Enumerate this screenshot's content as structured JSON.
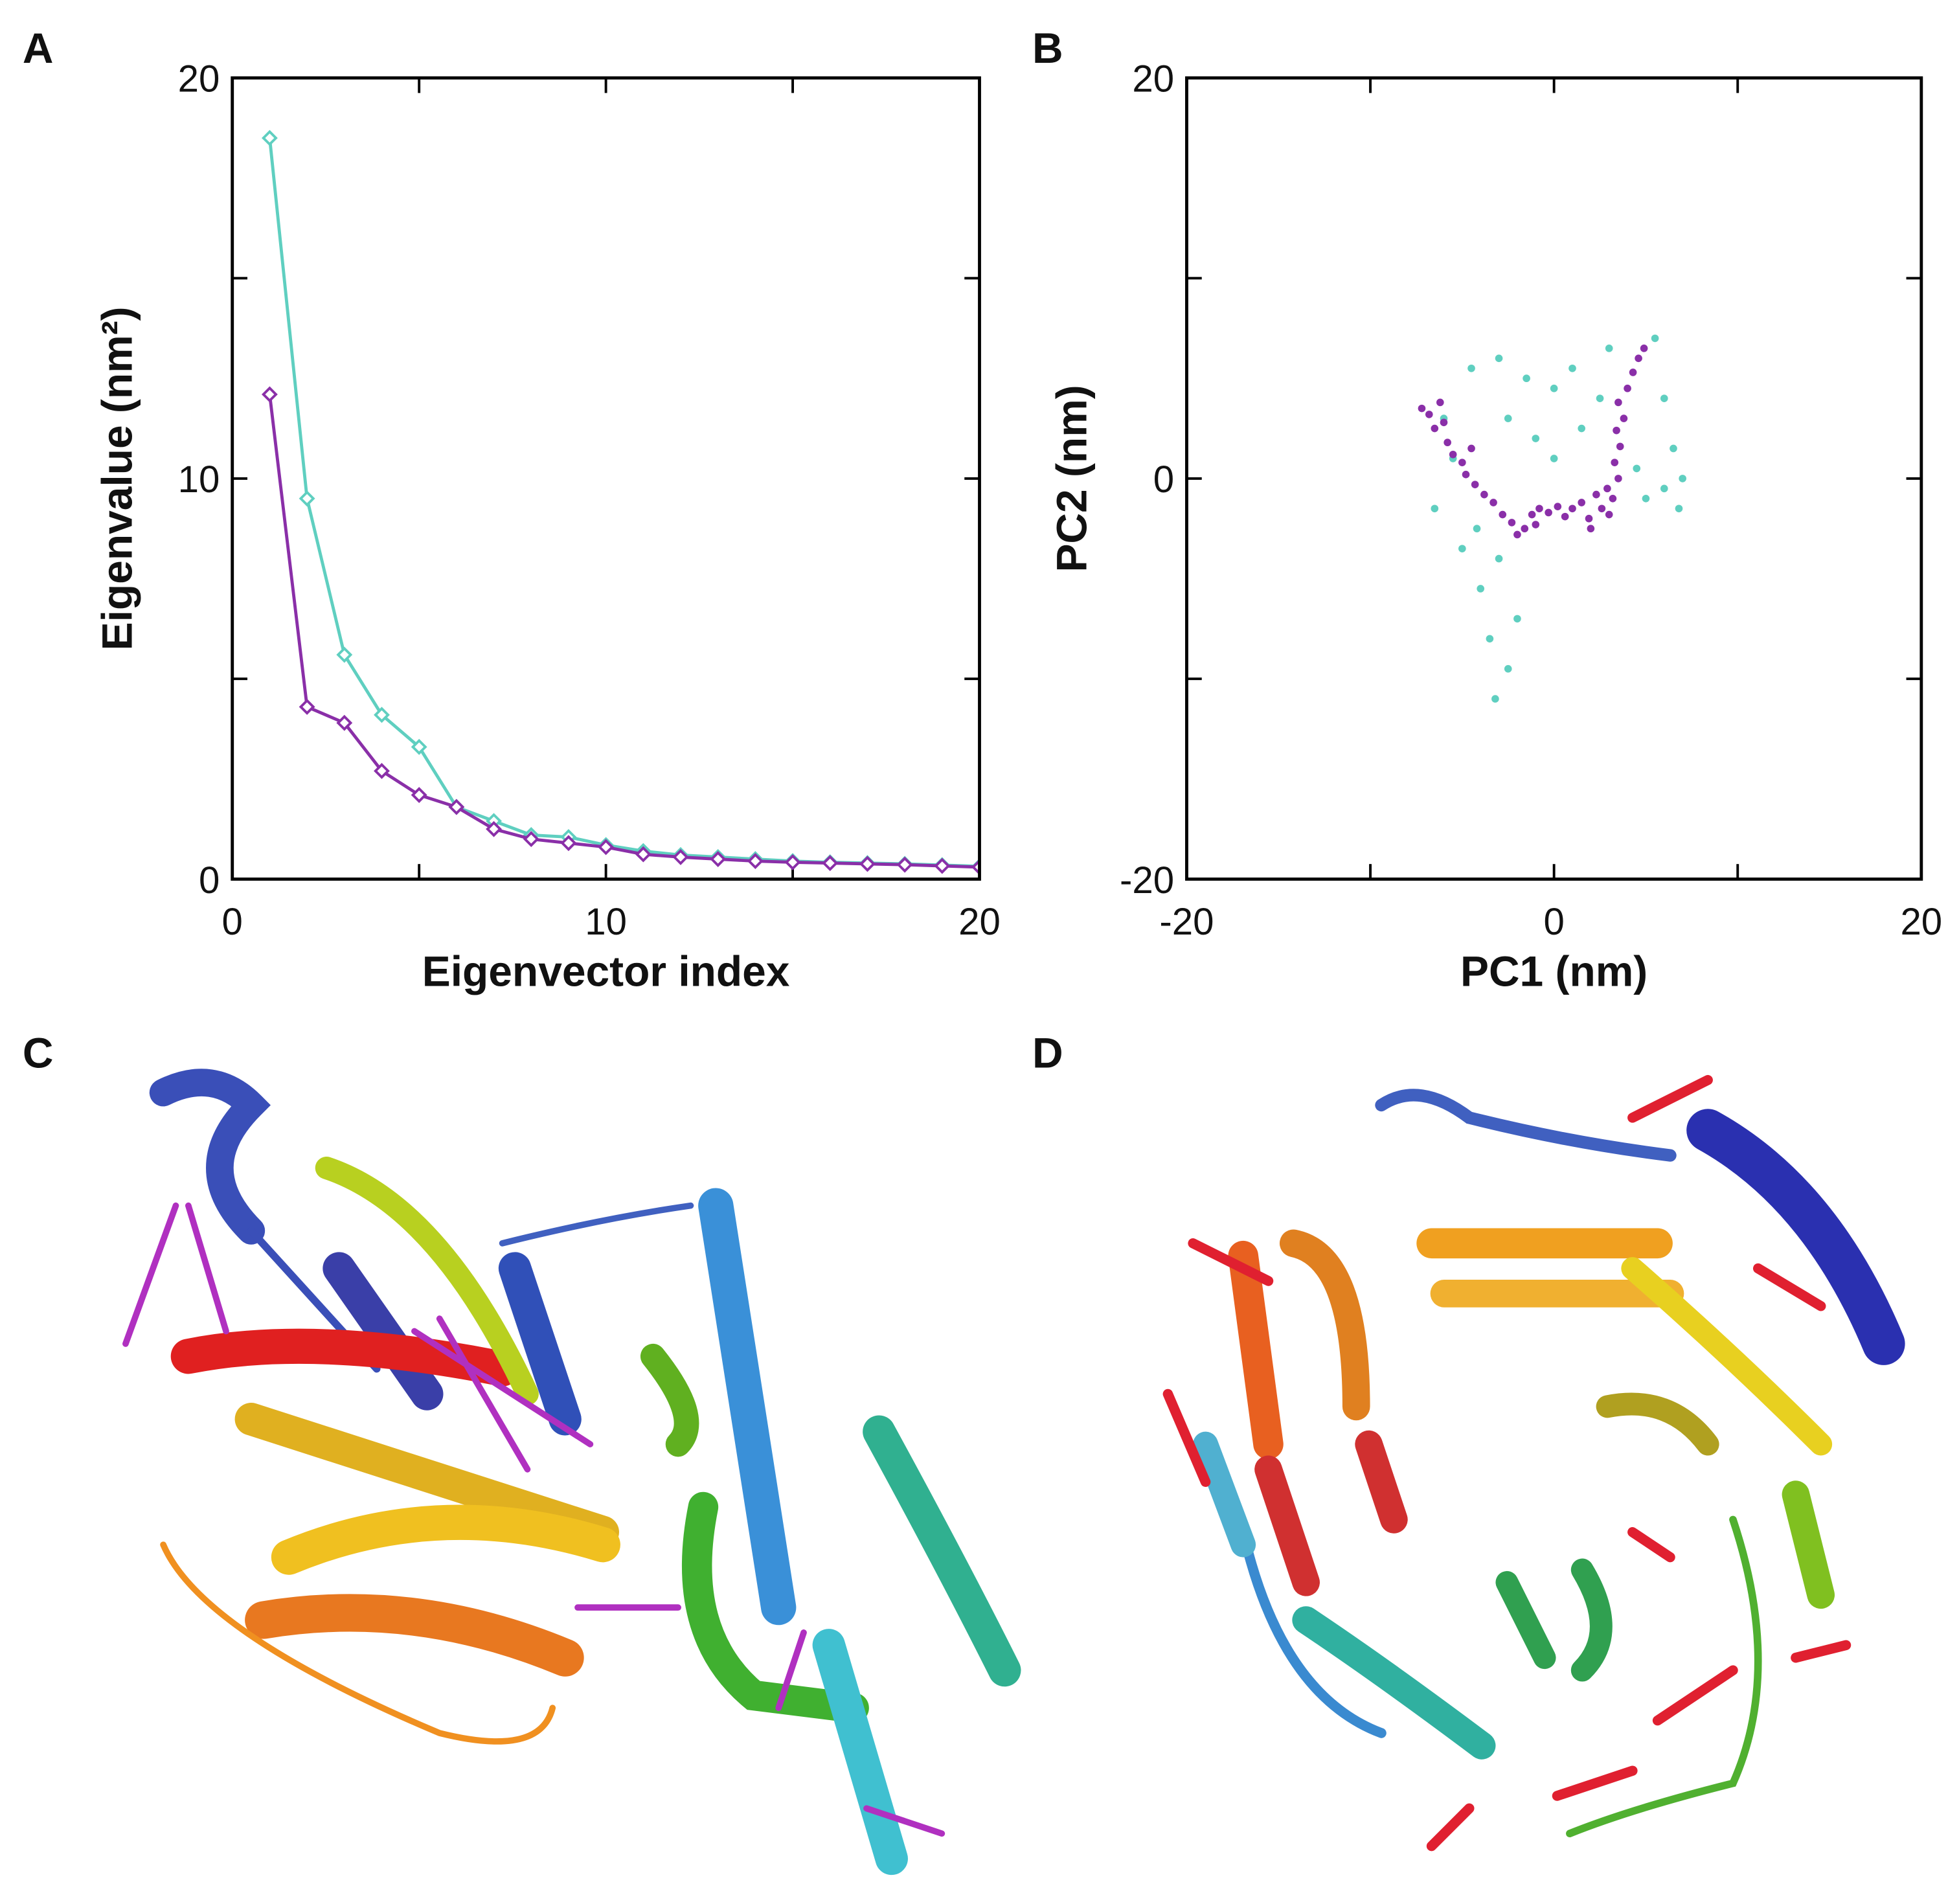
{
  "panel_labels": [
    "A",
    "B",
    "C",
    "D"
  ],
  "chart_data": [
    {
      "type": "line",
      "xlabel": "Eigenvector index",
      "ylabel": "Eigenvalue (nm²)",
      "xlim": [
        0,
        20
      ],
      "ylim": [
        0,
        20
      ],
      "xticks": [
        0,
        10,
        20
      ],
      "yticks": [
        0,
        10,
        20
      ],
      "xminor_ticks": [
        5,
        15
      ],
      "yminor_ticks": [
        5,
        15
      ],
      "x": [
        1,
        2,
        3,
        4,
        5,
        6,
        7,
        8,
        9,
        10,
        11,
        12,
        13,
        14,
        15,
        16,
        17,
        18,
        19,
        20
      ],
      "series": [
        {
          "color": "#5fcfc0",
          "values": [
            18.5,
            9.5,
            5.6,
            4.1,
            3.3,
            1.8,
            1.45,
            1.1,
            1.05,
            0.85,
            0.7,
            0.6,
            0.55,
            0.5,
            0.45,
            0.42,
            0.4,
            0.38,
            0.35,
            0.32
          ]
        },
        {
          "color": "#8a2fa8",
          "values": [
            12.1,
            4.3,
            3.9,
            2.7,
            2.1,
            1.8,
            1.25,
            1.0,
            0.9,
            0.8,
            0.62,
            0.55,
            0.5,
            0.45,
            0.42,
            0.4,
            0.38,
            0.36,
            0.33,
            0.3
          ]
        }
      ]
    },
    {
      "type": "scatter",
      "xlabel": "PC1 (nm)",
      "ylabel": "PC2 (nm)",
      "xlim": [
        -20,
        20
      ],
      "ylim": [
        -20,
        20
      ],
      "xticks": [
        -20,
        0,
        20
      ],
      "yticks": [
        -20,
        0,
        20
      ],
      "xminor_ticks": [
        -10,
        10
      ],
      "yminor_ticks": [
        -10,
        10
      ],
      "series": [
        {
          "color": "#5fcfc0",
          "x": [
            -3.2,
            -2.5,
            -3.5,
            -2,
            -4,
            -3,
            -5,
            -4.2,
            -6.5,
            -5.5,
            -6,
            -4.5,
            -3,
            -1.5,
            0,
            1,
            2.5,
            3,
            5.5,
            6,
            6.5,
            7,
            6,
            5,
            4.5,
            -1,
            0,
            -2.5,
            1.5,
            6.8
          ],
          "y": [
            -11,
            -9.5,
            -8,
            -7,
            -5.5,
            -4,
            -3.5,
            -2.5,
            -1.5,
            1,
            3,
            5.5,
            6,
            5,
            4.5,
            5.5,
            4,
            6.5,
            7,
            4,
            1.5,
            0,
            -0.5,
            -1,
            0.5,
            2,
            1,
            3,
            2.5,
            -1.5
          ]
        },
        {
          "color": "#8a2fa8",
          "x": [
            -7.2,
            -6.8,
            -6.5,
            -6.0,
            -5.8,
            -5.5,
            -5.0,
            -4.8,
            -4.3,
            -3.8,
            -3.3,
            -2.8,
            -2.3,
            -2.0,
            -1.6,
            -1.2,
            -0.8,
            -0.3,
            0.2,
            0.6,
            1.0,
            1.5,
            1.9,
            2.3,
            2.6,
            2.9,
            3.2,
            3.5,
            3.3,
            3.6,
            3.4,
            3.8,
            3.5,
            4.0,
            4.3,
            4.6,
            4.9,
            -6.2,
            -4.5,
            -1.0,
            2.0,
            3.0
          ],
          "y": [
            3.5,
            3.2,
            2.5,
            2.8,
            1.8,
            1.2,
            0.8,
            0.2,
            -0.3,
            -0.8,
            -1.2,
            -1.8,
            -2.2,
            -2.8,
            -2.5,
            -1.8,
            -1.5,
            -1.7,
            -1.4,
            -1.9,
            -1.5,
            -1.2,
            -2.0,
            -0.8,
            -1.5,
            -0.5,
            -1.0,
            0.0,
            0.8,
            1.6,
            2.4,
            3.0,
            3.8,
            4.5,
            5.3,
            6.0,
            6.5,
            3.8,
            1.5,
            -2.3,
            -2.5,
            -1.8
          ]
        }
      ]
    }
  ]
}
